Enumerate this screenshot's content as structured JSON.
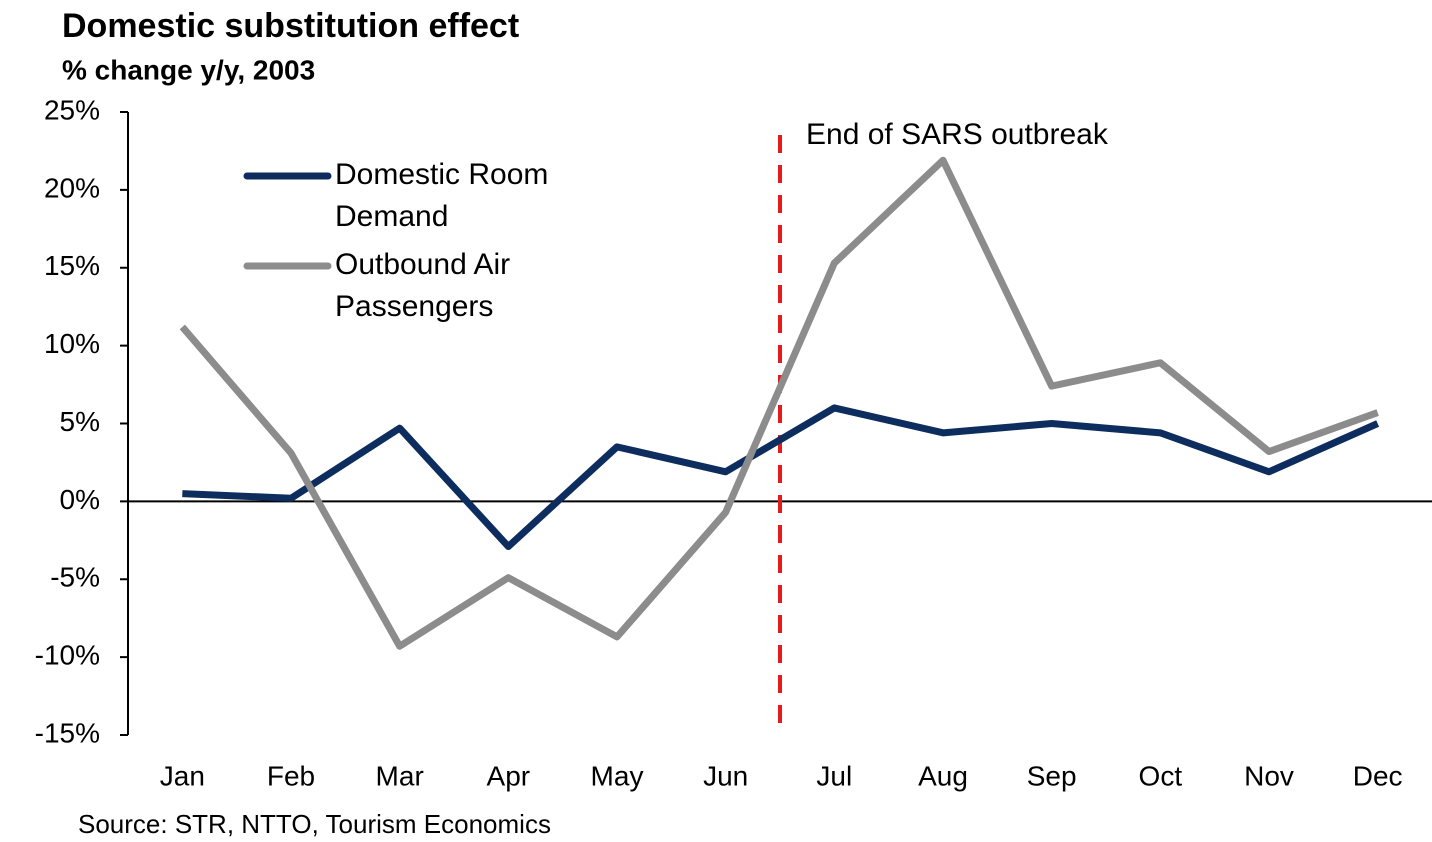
{
  "chart_data": {
    "type": "line",
    "title": "Domestic substitution effect",
    "subtitle": "% change y/y, 2003",
    "source": "Source: STR, NTTO, Tourism Economics",
    "annotation": "End of SARS outbreak",
    "categories": [
      "Jan",
      "Feb",
      "Mar",
      "Apr",
      "May",
      "Jun",
      "Jul",
      "Aug",
      "Sep",
      "Oct",
      "Nov",
      "Dec"
    ],
    "series": [
      {
        "name": "Domestic Room Demand",
        "color": "#0d2d5e",
        "values": [
          0.5,
          0.2,
          4.7,
          -2.9,
          3.5,
          1.9,
          6.0,
          4.4,
          5.0,
          4.4,
          1.9,
          5.0
        ]
      },
      {
        "name": "Outbound Air Passengers",
        "color": "#8c8c8c",
        "values": [
          11.2,
          3.1,
          -9.3,
          -4.9,
          -8.7,
          -0.7,
          15.3,
          21.9,
          7.4,
          8.9,
          3.2,
          5.7
        ]
      }
    ],
    "ylim": [
      -15,
      25
    ],
    "yticks": [
      {
        "value": -15,
        "label": "-15%"
      },
      {
        "value": -10,
        "label": "-10%"
      },
      {
        "value": -5,
        "label": "-5%"
      },
      {
        "value": 0,
        "label": "0%"
      },
      {
        "value": 5,
        "label": "5%"
      },
      {
        "value": 10,
        "label": "10%"
      },
      {
        "value": 15,
        "label": "15%"
      },
      {
        "value": 20,
        "label": "20%"
      },
      {
        "value": 25,
        "label": "25%"
      }
    ],
    "grid": false,
    "legend": "upper left"
  }
}
